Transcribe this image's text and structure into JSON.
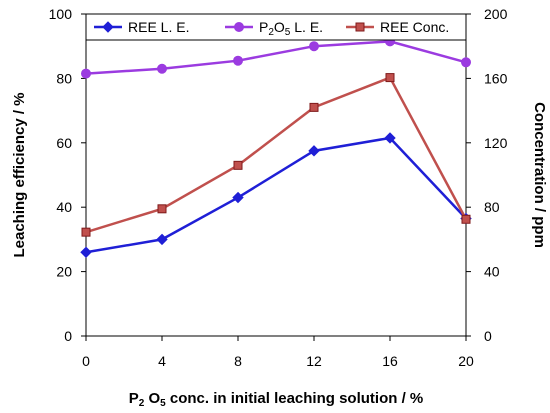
{
  "chart_data": {
    "type": "line",
    "x": [
      0,
      4,
      8,
      12,
      16,
      20
    ],
    "xlabel_parts": {
      "p": "P",
      "sub2": "2",
      "o": " O",
      "sub5": "5",
      "rest": " conc. in initial leaching solution / %"
    },
    "ylabel": "Leaching efficiency  / %",
    "y2label": "Concentration / ppm",
    "xlim": [
      0,
      20
    ],
    "ylim": [
      0,
      100
    ],
    "y2lim": [
      0,
      200
    ],
    "x_ticks": [
      "0",
      "4",
      "8",
      "12",
      "16",
      "20"
    ],
    "y_ticks": [
      "0",
      "20",
      "40",
      "60",
      "80",
      "100"
    ],
    "y2_ticks": [
      "0",
      "40",
      "80",
      "120",
      "160",
      "200"
    ],
    "grid": false,
    "legend_position": "top",
    "series": [
      {
        "name": "REE L. E.",
        "axis": "left",
        "color": "#1f1fd6",
        "marker": "diamond",
        "values": [
          26,
          30,
          43,
          57.5,
          61.5,
          36.5
        ]
      },
      {
        "name_parts": {
          "p": "P",
          "sub2": "2",
          "o": "O",
          "sub5": "5",
          "rest": " L. E."
        },
        "axis": "left",
        "color": "#9b3be0",
        "marker": "circle",
        "values": [
          81.5,
          83,
          85.5,
          90,
          91.5,
          85
        ]
      },
      {
        "name": "REE Conc.",
        "axis": "right",
        "color": "#c0504d",
        "marker": "square",
        "values": [
          64.5,
          79,
          106,
          142,
          160.5,
          72.5
        ]
      }
    ]
  }
}
